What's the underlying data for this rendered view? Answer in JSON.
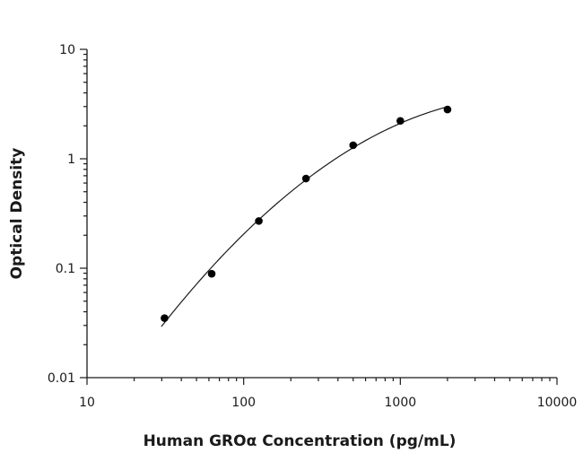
{
  "chart_data": {
    "type": "scatter",
    "title": "",
    "xlabel": "Human GROα Concentration (pg/mL)",
    "ylabel": "Optical Density",
    "xscale": "log",
    "yscale": "log",
    "xlim": [
      10,
      10000
    ],
    "ylim": [
      0.01,
      10
    ],
    "x_ticks": [
      "10",
      "100",
      "1000",
      "10000"
    ],
    "y_ticks": [
      "0.01",
      "0.1",
      "1",
      "10"
    ],
    "grid": false,
    "legend": "none",
    "series": [
      {
        "x": [
          31.25,
          62.5,
          125,
          250,
          500,
          1000,
          2000
        ],
        "y": [
          0.035,
          0.089,
          0.27,
          0.66,
          1.33,
          2.22,
          2.82
        ],
        "fit_curve": true
      }
    ],
    "colors": {
      "marker": "#000000",
      "line": "#1a1a1a"
    }
  }
}
